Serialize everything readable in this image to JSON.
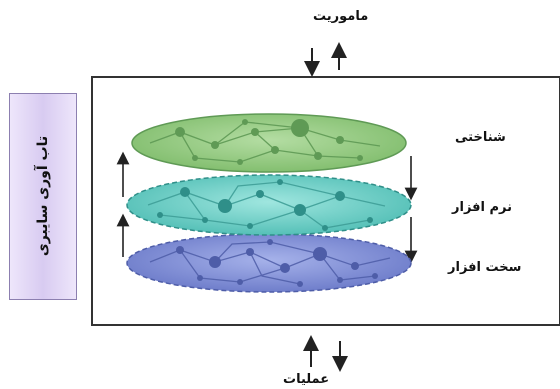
{
  "top_label": "ماموریت",
  "bottom_label": "عملیات",
  "side_label": "تاب آوری سایبری",
  "layers": [
    {
      "label": "شناختی",
      "color": "#8fc77c",
      "network_color": "#5f9a55"
    },
    {
      "label": "نرم افزار",
      "color": "#6fd0c8",
      "network_color": "#3f9f98"
    },
    {
      "label": "سخت افزار",
      "color": "#7f8fd6",
      "network_color": "#4e5da8"
    }
  ]
}
